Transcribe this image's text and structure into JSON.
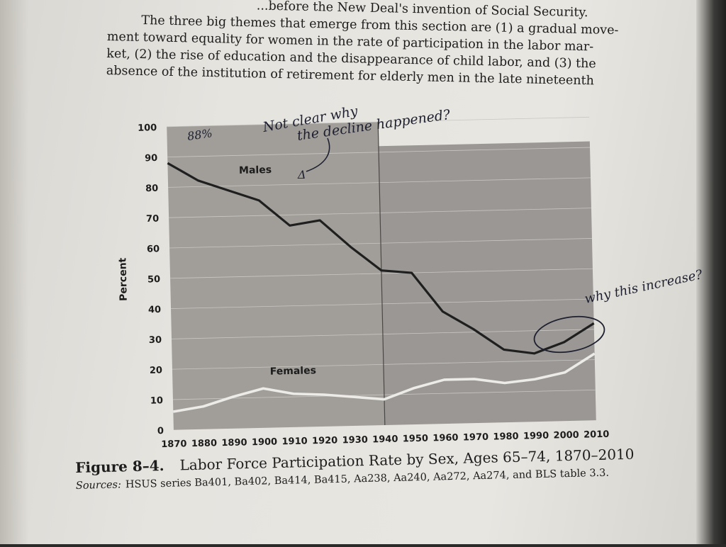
{
  "page": {
    "text_lines": [
      "...before the New Deal's invention of Social Security.",
      "The three big themes that emerge from this section are (1) a gradual move-",
      "ment toward equality for women in the rate of participation in the labor mar-",
      "ket, (2) the rise of education and the disappearance of child labor, and (3) the",
      "absence of the institution of retirement for elderly men in the late nineteenth"
    ],
    "caption_label": "Figure 8–4.",
    "caption_title": "Labor Force Participation Rate by Sex, Ages 65–74, 1870–2010",
    "sources_label": "Sources:",
    "sources_text": "HSUS series Ba401, Ba402, Ba414, Ba415, Aa238, Aa240, Aa272, Aa274, and BLS table 3.3."
  },
  "annotations": {
    "note_88": "88%",
    "note_top_line1": "Not clear why",
    "note_top_line2": "the decline happened?",
    "note_delta": "Δ",
    "note_right": "why this increase?"
  },
  "colors": {
    "plot_bg": "#9a9794",
    "males_line": "#1f1f1f",
    "females_line": "#ecebe8",
    "gridline": "#c9c7c3",
    "ink": "#1e2030"
  },
  "chart_data": {
    "type": "line",
    "title": "",
    "xlabel": "",
    "ylabel": "Percent",
    "ylim": [
      0,
      100
    ],
    "xlim": [
      1870,
      2010
    ],
    "yticks": [
      0,
      10,
      20,
      30,
      40,
      50,
      60,
      70,
      80,
      90,
      100
    ],
    "xticks": [
      1870,
      1880,
      1890,
      1900,
      1910,
      1920,
      1930,
      1940,
      1950,
      1960,
      1970,
      1980,
      1990,
      2000,
      2010
    ],
    "grid": true,
    "series": [
      {
        "name": "Males",
        "x": [
          1870,
          1880,
          1890,
          1900,
          1910,
          1920,
          1930,
          1940,
          1950,
          1960,
          1970,
          1980,
          1990,
          2000,
          2010
        ],
        "values": [
          88,
          82,
          78.5,
          75,
          66.5,
          68,
          59,
          51,
          50,
          37,
          31,
          24,
          22.5,
          26,
          32
        ]
      },
      {
        "name": "Females",
        "x": [
          1870,
          1880,
          1890,
          1900,
          1910,
          1920,
          1930,
          1940,
          1950,
          1960,
          1970,
          1980,
          1990,
          2000,
          2010
        ],
        "values": [
          6,
          7.5,
          10.5,
          13,
          11,
          10.5,
          9.5,
          8.5,
          12,
          14.5,
          14.5,
          13,
          14,
          16,
          22
        ]
      }
    ]
  }
}
